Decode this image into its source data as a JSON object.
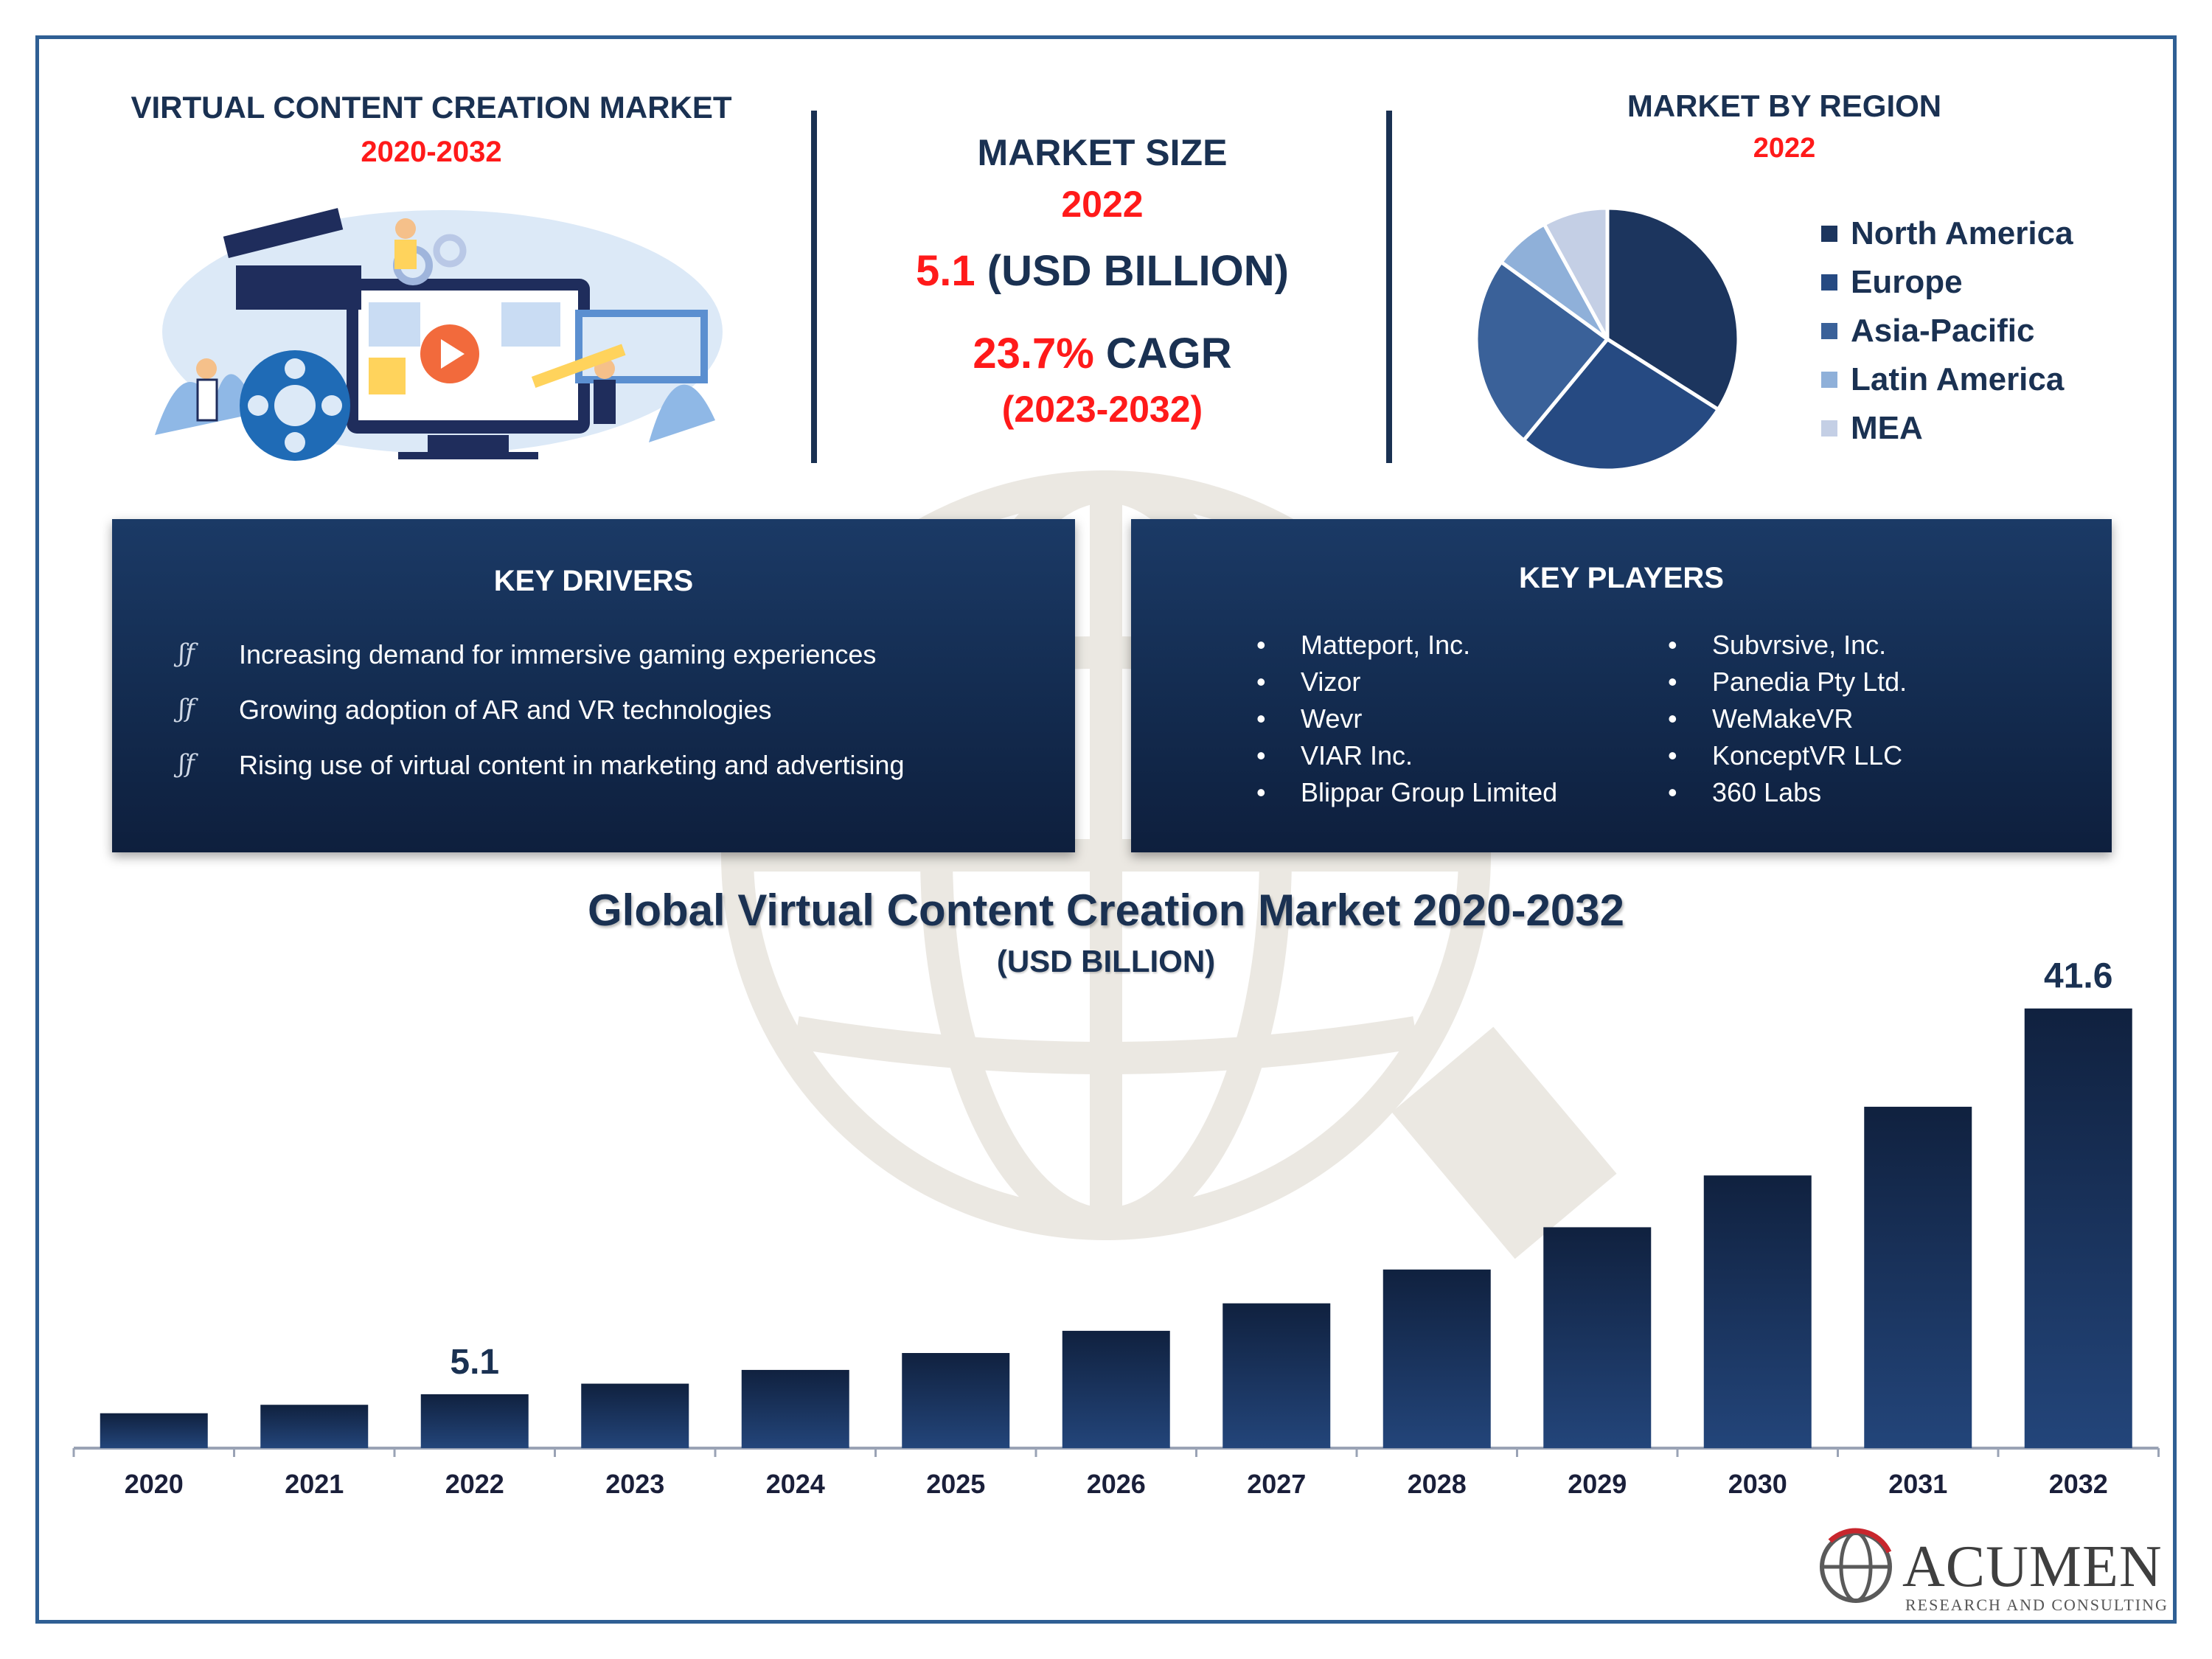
{
  "header": {
    "left_title": "VIRTUAL CONTENT CREATION MARKET",
    "left_years": "2020-2032",
    "market_size_label": "MARKET SIZE",
    "market_size_year": "2022",
    "market_size_value": "5.1",
    "market_size_unit": "(USD BILLION)",
    "cagr_value": "23.7%",
    "cagr_label": "CAGR",
    "cagr_period": "(2023-2032)",
    "region_title": "MARKET BY REGION",
    "region_year": "2022"
  },
  "colors": {
    "navy": "#1a3152",
    "accent_red": "#ff1a1a",
    "box_dark": "#132b4f",
    "pie": [
      "#1c355e",
      "#264a82",
      "#3a6199",
      "#8fb0d9",
      "#c4cfe5"
    ]
  },
  "region_pie": {
    "type": "pie",
    "labels": [
      "North America",
      "Europe",
      "Asia-Pacific",
      "Latin America",
      "MEA"
    ],
    "values": [
      34,
      27,
      24,
      7,
      8
    ]
  },
  "key_drivers": {
    "title": "KEY DRIVERS",
    "items": [
      "Increasing demand for immersive gaming experiences",
      "Growing adoption of AR and VR technologies",
      "Rising use of virtual content in marketing and advertising"
    ]
  },
  "key_players": {
    "title": "KEY PLAYERS",
    "col1": [
      "Matteport, Inc.",
      "Vizor",
      "Wevr",
      "VIAR Inc.",
      "Blippar Group Limited"
    ],
    "col2": [
      "Subvrsive, Inc.",
      "Panedia Pty Ltd.",
      "WeMakeVR",
      "KonceptVR LLC",
      "360 Labs"
    ]
  },
  "chart_data": {
    "type": "bar",
    "title": "Global Virtual Content Creation Market 2020-2032",
    "subtitle": "(USD BILLION)",
    "categories": [
      "2020",
      "2021",
      "2022",
      "2023",
      "2024",
      "2025",
      "2026",
      "2027",
      "2028",
      "2029",
      "2030",
      "2031",
      "2032"
    ],
    "values": [
      3.3,
      4.1,
      5.1,
      6.1,
      7.4,
      9.0,
      11.1,
      13.7,
      16.9,
      20.9,
      25.8,
      32.3,
      41.6
    ],
    "data_labels": {
      "2022": "5.1",
      "2032": "41.6"
    },
    "ylim": [
      0,
      42
    ]
  },
  "brand": {
    "name": "ACUMEN",
    "tagline": "RESEARCH AND CONSULTING"
  }
}
